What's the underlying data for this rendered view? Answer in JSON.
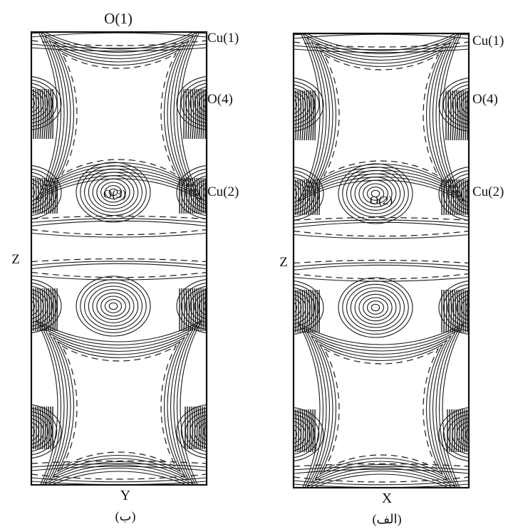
{
  "figure": {
    "panels": [
      {
        "id": "b",
        "caption": "(ب)",
        "axis_horizontal": "Y",
        "axis_vertical": "Z",
        "labels": {
          "top": "O(1)",
          "right_top": "Cu(1)",
          "right_mid": "O(4)",
          "right_lower": "Cu(2)",
          "center": "O(3)"
        }
      },
      {
        "id": "alef",
        "caption": "(الف)",
        "axis_horizontal": "X",
        "axis_vertical": "Z",
        "labels": {
          "right_top": "Cu(1)",
          "right_mid": "O(4)",
          "right_lower": "Cu(2)",
          "center": "O(2)"
        }
      }
    ]
  }
}
